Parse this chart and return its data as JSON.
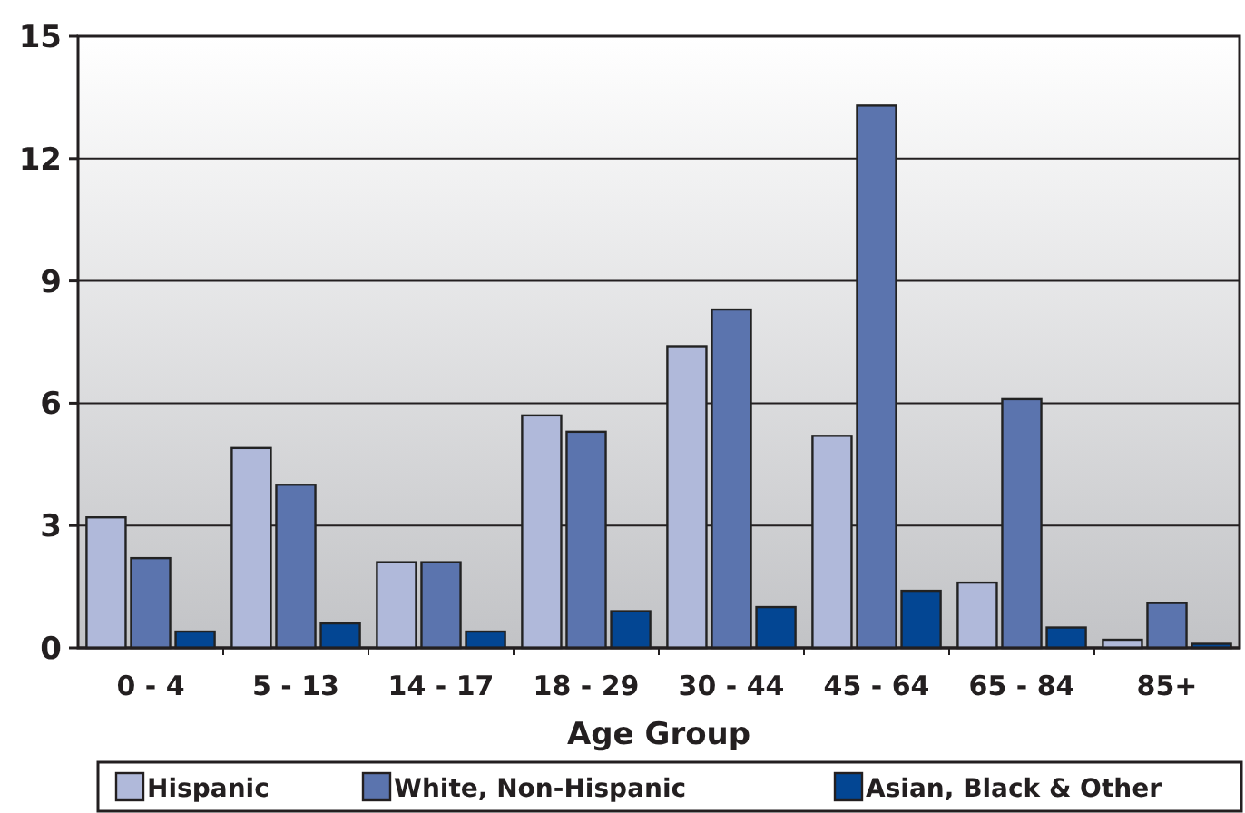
{
  "chart_data": {
    "type": "bar",
    "xlabel": "Age Group",
    "categories": [
      "0 - 4",
      "5 - 13",
      "14 - 17",
      "18 - 29",
      "30 - 44",
      "45 - 64",
      "65 - 84",
      "85+"
    ],
    "series": [
      {
        "name": "Hispanic",
        "color": "#b0b9da",
        "values": [
          3.2,
          4.9,
          2.1,
          5.7,
          7.4,
          5.2,
          1.6,
          0.2
        ]
      },
      {
        "name": "White, Non-Hispanic",
        "color": "#5b74ae",
        "values": [
          2.2,
          4.0,
          2.1,
          5.3,
          8.3,
          13.3,
          6.1,
          1.1
        ]
      },
      {
        "name": "Asian, Black & Other",
        "color": "#034693",
        "values": [
          0.4,
          0.6,
          0.4,
          0.9,
          1.0,
          1.4,
          0.5,
          0.1
        ]
      }
    ],
    "ylim": [
      0,
      15
    ],
    "yticks": [
      0,
      3,
      6,
      9,
      12,
      15
    ],
    "grid": "y",
    "legend": "bottom"
  }
}
